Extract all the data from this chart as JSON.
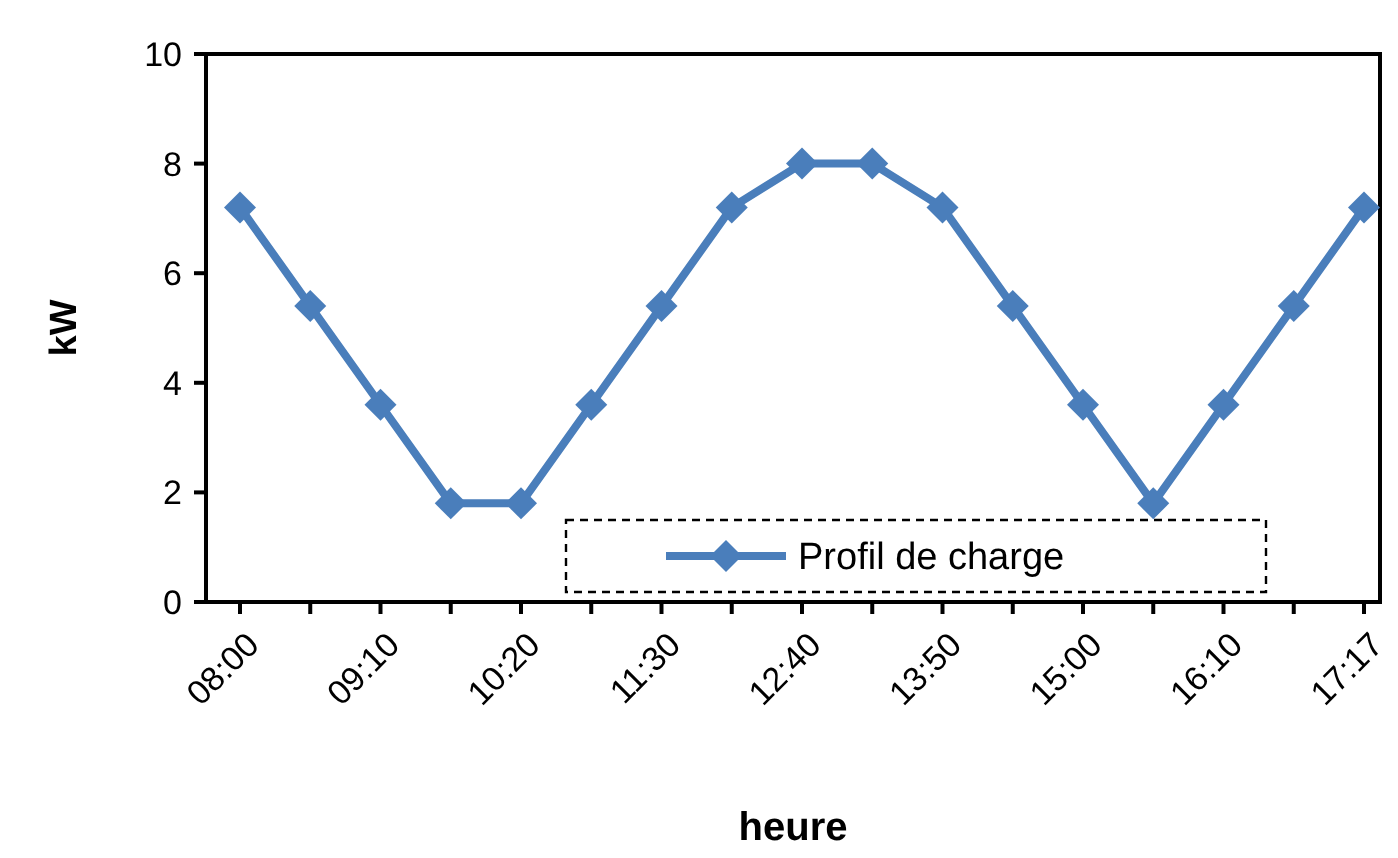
{
  "chart_data": {
    "type": "line",
    "xlabel": "heure",
    "ylabel": "kW",
    "categories": [
      "08:00",
      null,
      "09:10",
      null,
      "10:20",
      null,
      "11:30",
      null,
      "12:40",
      null,
      "13:50",
      null,
      "15:00",
      null,
      "16:10",
      null,
      "17:17"
    ],
    "series": [
      {
        "name": "Profil de charge",
        "color": "#4a7ebb",
        "values": [
          7.2,
          5.4,
          3.6,
          1.8,
          1.8,
          3.6,
          5.4,
          7.2,
          8,
          8,
          7.2,
          5.4,
          3.6,
          1.8,
          3.6,
          5.4,
          7.2
        ]
      }
    ],
    "ylim": [
      0,
      10
    ],
    "yticks": [
      0,
      2,
      4,
      6,
      8,
      10
    ],
    "grid": false,
    "legend": "bottom",
    "marker": "diamond",
    "line_style": "solid"
  }
}
